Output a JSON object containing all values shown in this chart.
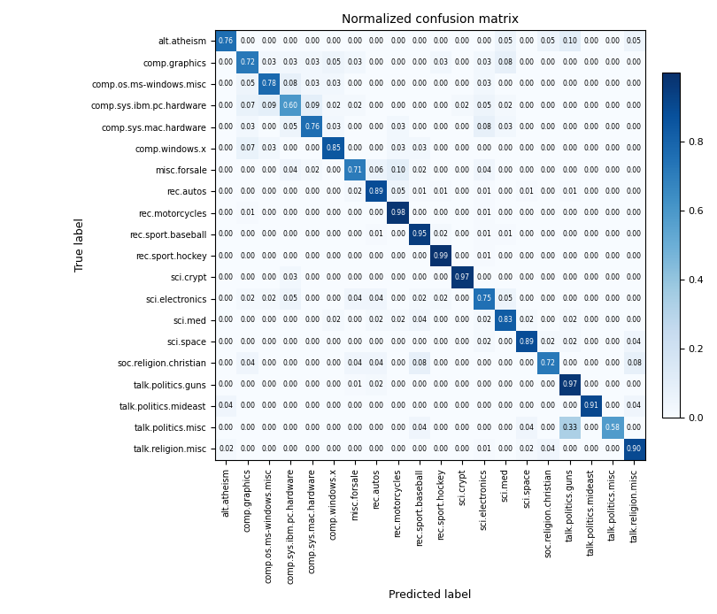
{
  "title": "Normalized confusion matrix",
  "xlabel": "Predicted label",
  "ylabel": "True label",
  "classes": [
    "alt.atheism",
    "comp.graphics",
    "comp.os.ms-windows.misc",
    "comp.sys.ibm.pc.hardware",
    "comp.sys.mac.hardware",
    "comp.windows.x",
    "misc.forsale",
    "rec.autos",
    "rec.motorcycles",
    "rec.sport.baseball",
    "rec.sport.hockey",
    "sci.crypt",
    "sci.electronics",
    "sci.med",
    "sci.space",
    "soc.religion.christian",
    "talk.politics.guns",
    "talk.politics.mideast",
    "talk.politics.misc",
    "talk.religion.misc"
  ],
  "matrix": [
    [
      0.76,
      0.0,
      0.0,
      0.0,
      0.0,
      0.0,
      0.0,
      0.0,
      0.0,
      0.0,
      0.0,
      0.0,
      0.0,
      0.05,
      0.0,
      0.05,
      0.1,
      0.0,
      0.0,
      0.05
    ],
    [
      0.0,
      0.72,
      0.03,
      0.03,
      0.03,
      0.05,
      0.03,
      0.0,
      0.0,
      0.0,
      0.03,
      0.0,
      0.03,
      0.08,
      0.0,
      0.0,
      0.0,
      0.0,
      0.0,
      0.0
    ],
    [
      0.0,
      0.05,
      0.78,
      0.08,
      0.03,
      0.03,
      0.0,
      0.0,
      0.0,
      0.0,
      0.0,
      0.0,
      0.03,
      0.0,
      0.0,
      0.0,
      0.0,
      0.0,
      0.0,
      0.0
    ],
    [
      0.0,
      0.07,
      0.09,
      0.6,
      0.09,
      0.02,
      0.02,
      0.0,
      0.0,
      0.0,
      0.0,
      0.02,
      0.05,
      0.02,
      0.0,
      0.0,
      0.0,
      0.0,
      0.0,
      0.0
    ],
    [
      0.0,
      0.03,
      0.0,
      0.05,
      0.76,
      0.03,
      0.0,
      0.0,
      0.03,
      0.0,
      0.0,
      0.0,
      0.08,
      0.03,
      0.0,
      0.0,
      0.0,
      0.0,
      0.0,
      0.0
    ],
    [
      0.0,
      0.07,
      0.03,
      0.0,
      0.0,
      0.85,
      0.0,
      0.0,
      0.03,
      0.03,
      0.0,
      0.0,
      0.0,
      0.0,
      0.0,
      0.0,
      0.0,
      0.0,
      0.0,
      0.0
    ],
    [
      0.0,
      0.0,
      0.0,
      0.04,
      0.02,
      0.0,
      0.71,
      0.06,
      0.1,
      0.02,
      0.0,
      0.0,
      0.04,
      0.0,
      0.0,
      0.0,
      0.0,
      0.0,
      0.0,
      0.0
    ],
    [
      0.0,
      0.0,
      0.0,
      0.0,
      0.0,
      0.0,
      0.02,
      0.89,
      0.05,
      0.01,
      0.01,
      0.0,
      0.01,
      0.0,
      0.01,
      0.0,
      0.01,
      0.0,
      0.0,
      0.0
    ],
    [
      0.0,
      0.01,
      0.0,
      0.0,
      0.0,
      0.0,
      0.0,
      0.0,
      0.98,
      0.0,
      0.0,
      0.0,
      0.01,
      0.0,
      0.0,
      0.0,
      0.0,
      0.0,
      0.0,
      0.0
    ],
    [
      0.0,
      0.0,
      0.0,
      0.0,
      0.0,
      0.0,
      0.0,
      0.01,
      0.0,
      0.95,
      0.02,
      0.0,
      0.01,
      0.01,
      0.0,
      0.0,
      0.0,
      0.0,
      0.0,
      0.0
    ],
    [
      0.0,
      0.0,
      0.0,
      0.0,
      0.0,
      0.0,
      0.0,
      0.0,
      0.0,
      0.0,
      0.99,
      0.0,
      0.01,
      0.0,
      0.0,
      0.0,
      0.0,
      0.0,
      0.0,
      0.0
    ],
    [
      0.0,
      0.0,
      0.0,
      0.03,
      0.0,
      0.0,
      0.0,
      0.0,
      0.0,
      0.0,
      0.0,
      0.97,
      0.0,
      0.0,
      0.0,
      0.0,
      0.0,
      0.0,
      0.0,
      0.0
    ],
    [
      0.0,
      0.02,
      0.02,
      0.05,
      0.0,
      0.0,
      0.04,
      0.04,
      0.0,
      0.02,
      0.02,
      0.0,
      0.75,
      0.05,
      0.0,
      0.0,
      0.0,
      0.0,
      0.0,
      0.0
    ],
    [
      0.0,
      0.0,
      0.0,
      0.0,
      0.0,
      0.02,
      0.0,
      0.02,
      0.02,
      0.04,
      0.0,
      0.0,
      0.02,
      0.83,
      0.02,
      0.0,
      0.02,
      0.0,
      0.0,
      0.0
    ],
    [
      0.0,
      0.0,
      0.0,
      0.0,
      0.0,
      0.0,
      0.0,
      0.0,
      0.0,
      0.0,
      0.0,
      0.0,
      0.02,
      0.0,
      0.89,
      0.02,
      0.02,
      0.0,
      0.0,
      0.04
    ],
    [
      0.0,
      0.04,
      0.0,
      0.0,
      0.0,
      0.0,
      0.04,
      0.04,
      0.0,
      0.08,
      0.0,
      0.0,
      0.0,
      0.0,
      0.0,
      0.72,
      0.0,
      0.0,
      0.0,
      0.08
    ],
    [
      0.0,
      0.0,
      0.0,
      0.0,
      0.0,
      0.0,
      0.01,
      0.02,
      0.0,
      0.0,
      0.0,
      0.0,
      0.0,
      0.0,
      0.0,
      0.0,
      0.97,
      0.0,
      0.0,
      0.0
    ],
    [
      0.04,
      0.0,
      0.0,
      0.0,
      0.0,
      0.0,
      0.0,
      0.0,
      0.0,
      0.0,
      0.0,
      0.0,
      0.0,
      0.0,
      0.0,
      0.0,
      0.0,
      0.91,
      0.0,
      0.04
    ],
    [
      0.0,
      0.0,
      0.0,
      0.0,
      0.0,
      0.0,
      0.0,
      0.0,
      0.0,
      0.04,
      0.0,
      0.0,
      0.0,
      0.0,
      0.04,
      0.0,
      0.33,
      0.0,
      0.58,
      0.0
    ],
    [
      0.02,
      0.0,
      0.0,
      0.0,
      0.0,
      0.0,
      0.0,
      0.0,
      0.0,
      0.0,
      0.0,
      0.0,
      0.01,
      0.0,
      0.02,
      0.04,
      0.0,
      0.0,
      0.0,
      0.9
    ]
  ],
  "colormap": "Blues",
  "vmin": 0.0,
  "vmax": 1.0,
  "figsize": [
    8.1,
    6.94
  ],
  "dpi": 100,
  "title_fontsize": 10,
  "label_fontsize": 9,
  "tick_fontsize": 7,
  "cell_fontsize": 5.5,
  "colorbar_ticks": [
    0.0,
    0.2,
    0.4,
    0.6,
    0.8
  ],
  "colorbar_tick_fontsize": 8
}
